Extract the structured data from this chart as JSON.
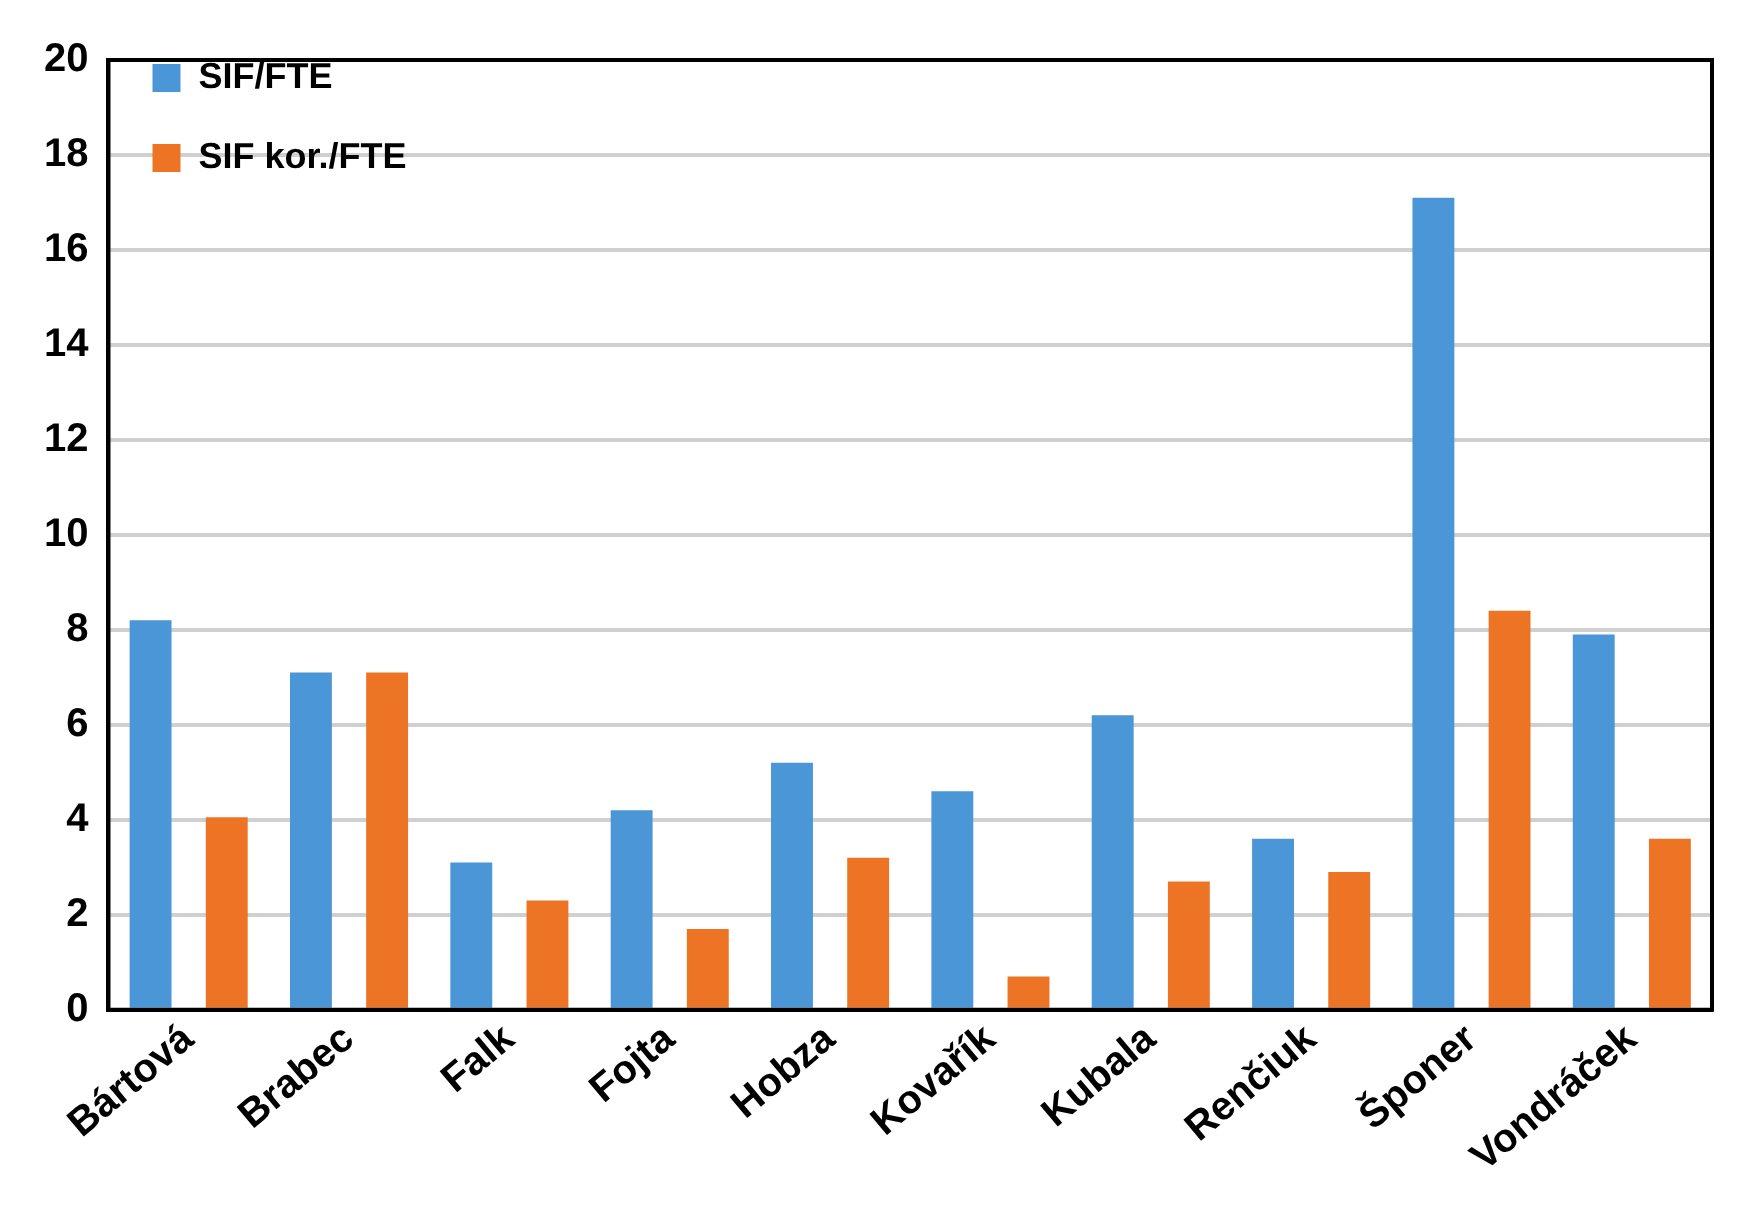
{
  "chart_data": {
    "type": "bar",
    "categories": [
      "Bártová",
      "Brabec",
      "Falk",
      "Fojta",
      "Hobza",
      "Kovařík",
      "Kubala",
      "Renčiuk",
      "Šponer",
      "Vondráček"
    ],
    "series": [
      {
        "name": "SIF/FTE",
        "color": "#4a96d6",
        "values": [
          8.2,
          7.1,
          3.1,
          4.2,
          5.2,
          4.6,
          6.2,
          3.6,
          17.1,
          7.9
        ]
      },
      {
        "name": "SIF kor./FTE",
        "color": "#ed7424",
        "values": [
          4.05,
          7.1,
          2.3,
          1.7,
          3.2,
          0.7,
          2.7,
          2.9,
          8.4,
          3.6
        ]
      }
    ],
    "ylim": [
      0,
      20
    ],
    "yticks": [
      0,
      2,
      4,
      6,
      8,
      10,
      12,
      14,
      16,
      18,
      20
    ],
    "grid": "y",
    "legend": "top left"
  }
}
